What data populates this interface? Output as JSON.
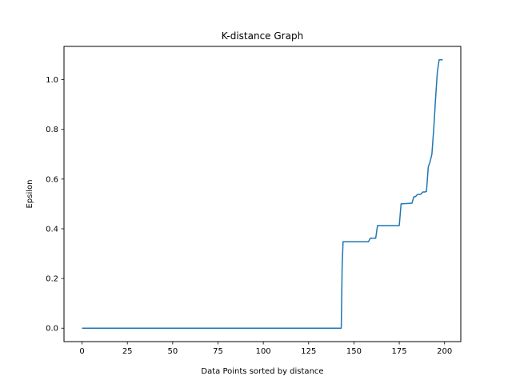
{
  "chart_data": {
    "type": "line",
    "title": "K-distance Graph",
    "xlabel": "Data Points sorted by distance",
    "ylabel": "Epsilon",
    "xlim": [
      -9.95,
      208.95
    ],
    "ylim": [
      -0.054,
      1.134
    ],
    "xticks": [
      0,
      25,
      50,
      75,
      100,
      125,
      150,
      175,
      200
    ],
    "yticks": [
      0.0,
      0.2,
      0.4,
      0.6,
      0.8,
      1.0
    ],
    "ytick_labels": [
      "0.0",
      "0.2",
      "0.4",
      "0.6",
      "0.8",
      "1.0"
    ],
    "grid": false,
    "legend": "none",
    "series": [
      {
        "color": "#1f77b4",
        "x": [
          0,
          143,
          143.5,
          144,
          158,
          159,
          162,
          163,
          175,
          176,
          182,
          183,
          184,
          185,
          186,
          187,
          188,
          189,
          190,
          191,
          192,
          193,
          194,
          195,
          196,
          197,
          198,
          199
        ],
        "y": [
          0.0,
          0.0,
          0.25,
          0.348,
          0.348,
          0.362,
          0.362,
          0.413,
          0.413,
          0.5,
          0.503,
          0.528,
          0.53,
          0.538,
          0.538,
          0.54,
          0.548,
          0.548,
          0.55,
          0.648,
          0.67,
          0.7,
          0.8,
          0.92,
          1.03,
          1.08,
          1.08,
          1.08
        ]
      }
    ]
  }
}
